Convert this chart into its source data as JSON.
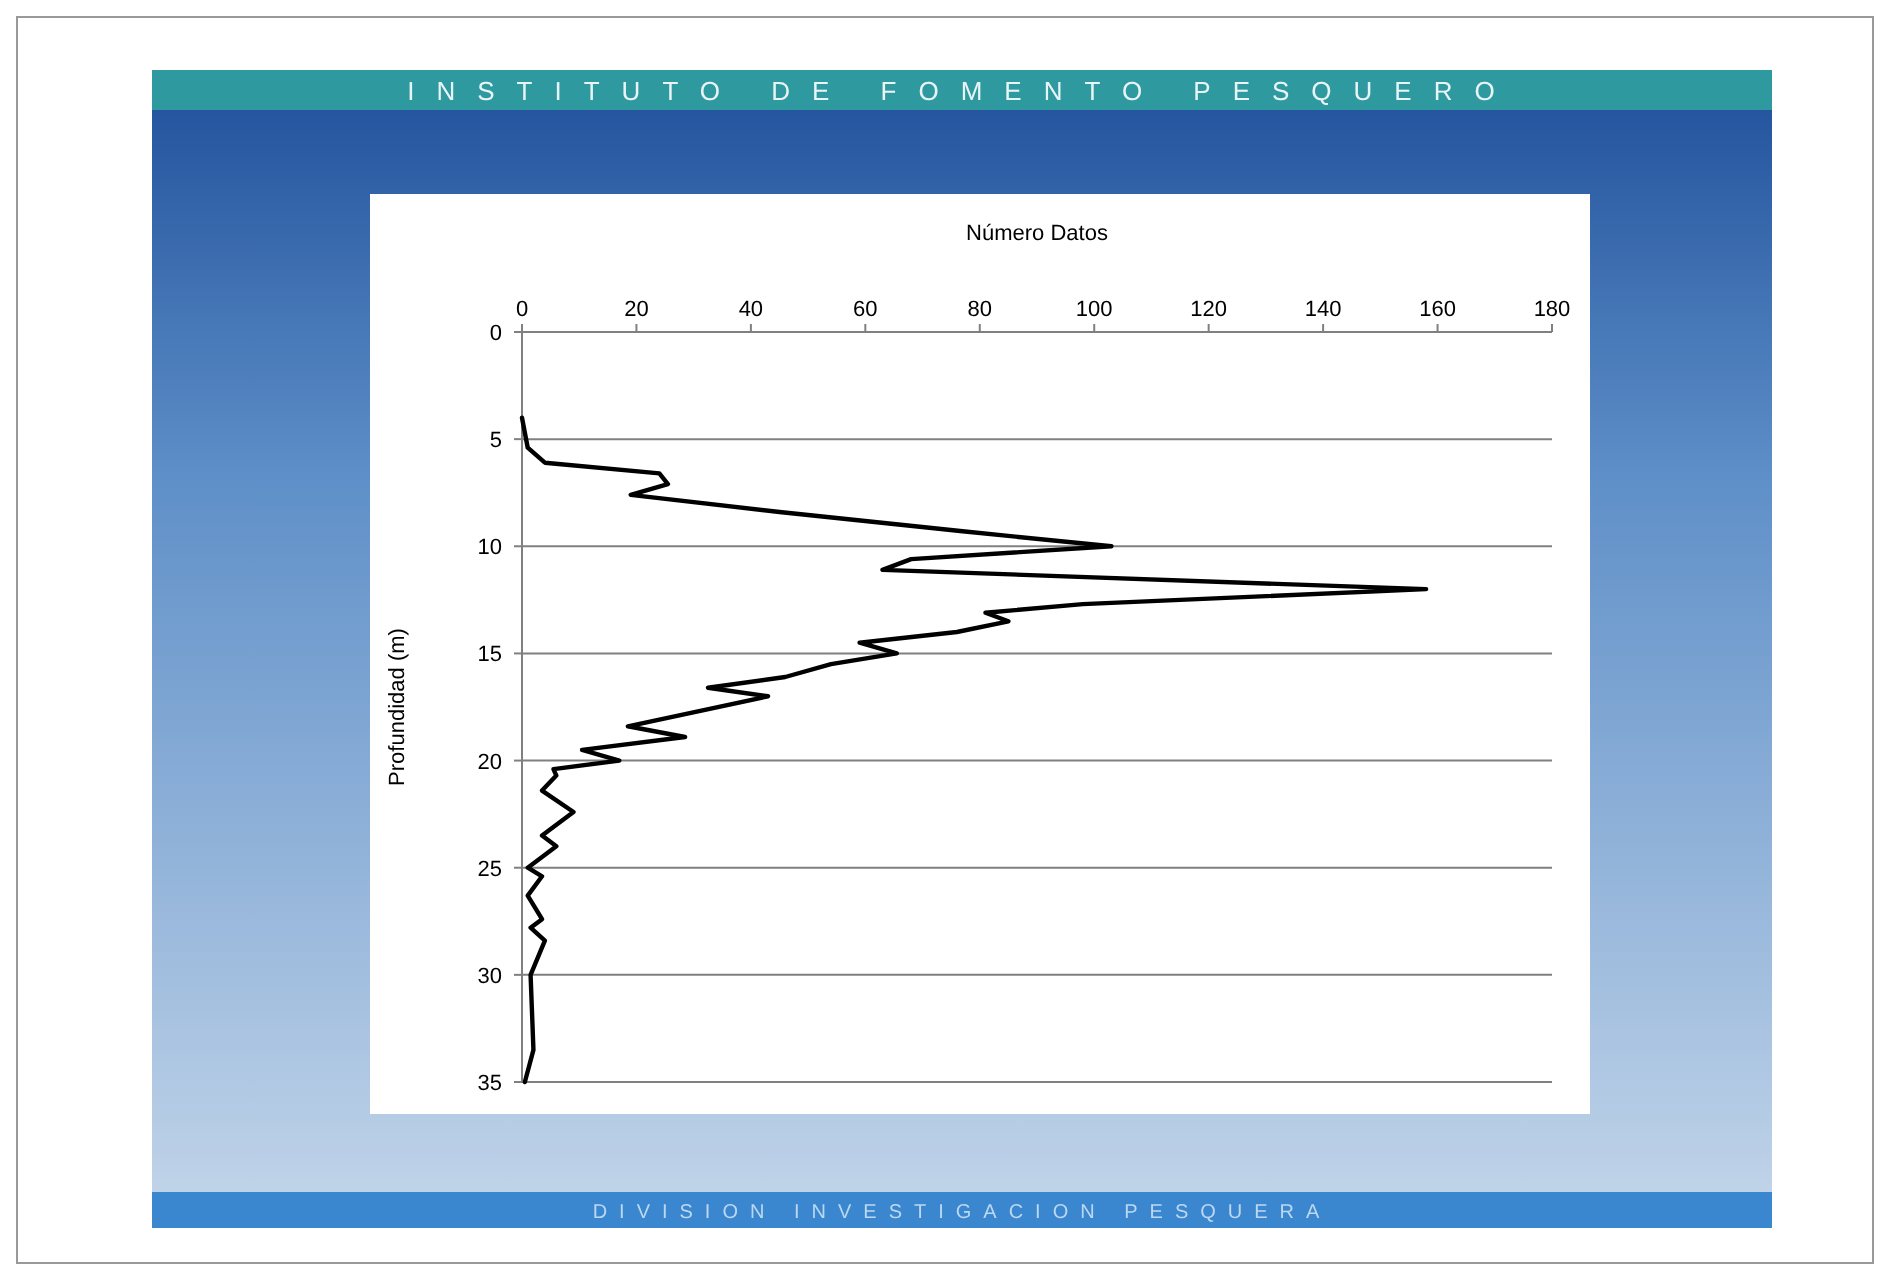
{
  "chart_data": {
    "type": "line",
    "title": "INSTITUTO DE FOMENTO PESQUERO",
    "xlabel": "Número Datos",
    "ylabel": "Profundidad (m)",
    "annotations": [
      "DIVISION INVESTIGACION PESQUERA"
    ],
    "xlim": [
      0,
      180
    ],
    "xticks": [
      0,
      20,
      40,
      60,
      80,
      100,
      120,
      140,
      160,
      180
    ],
    "ylim": [
      35,
      0
    ],
    "yticks": [
      0,
      5,
      10,
      15,
      20,
      25,
      30,
      35
    ],
    "grid": "y",
    "series": [
      {
        "color": "#000000",
        "x": [
          0,
          1,
          4,
          24,
          25.5,
          19,
          45,
          77,
          103,
          68,
          63,
          158,
          98,
          81,
          85,
          76,
          59,
          65.5,
          54,
          46,
          32.5,
          43,
          18.5,
          28.5,
          10.5,
          17,
          5.5,
          6,
          3.5,
          9,
          3.5,
          6,
          1,
          3.5,
          1,
          3.5,
          1.5,
          4,
          1.5,
          2,
          0.5
        ],
        "values": [
          4,
          5.4,
          6.1,
          6.6,
          7.1,
          7.6,
          8.4,
          9.3,
          10,
          10.6,
          11.1,
          12,
          12.7,
          13.1,
          13.5,
          14,
          14.5,
          15,
          15.5,
          16.1,
          16.6,
          17,
          18.4,
          18.9,
          19.5,
          20,
          20.4,
          20.7,
          21.4,
          22.4,
          23.5,
          24,
          25,
          25.4,
          26.3,
          27.4,
          27.8,
          28.4,
          30,
          33.5,
          35
        ]
      }
    ]
  }
}
